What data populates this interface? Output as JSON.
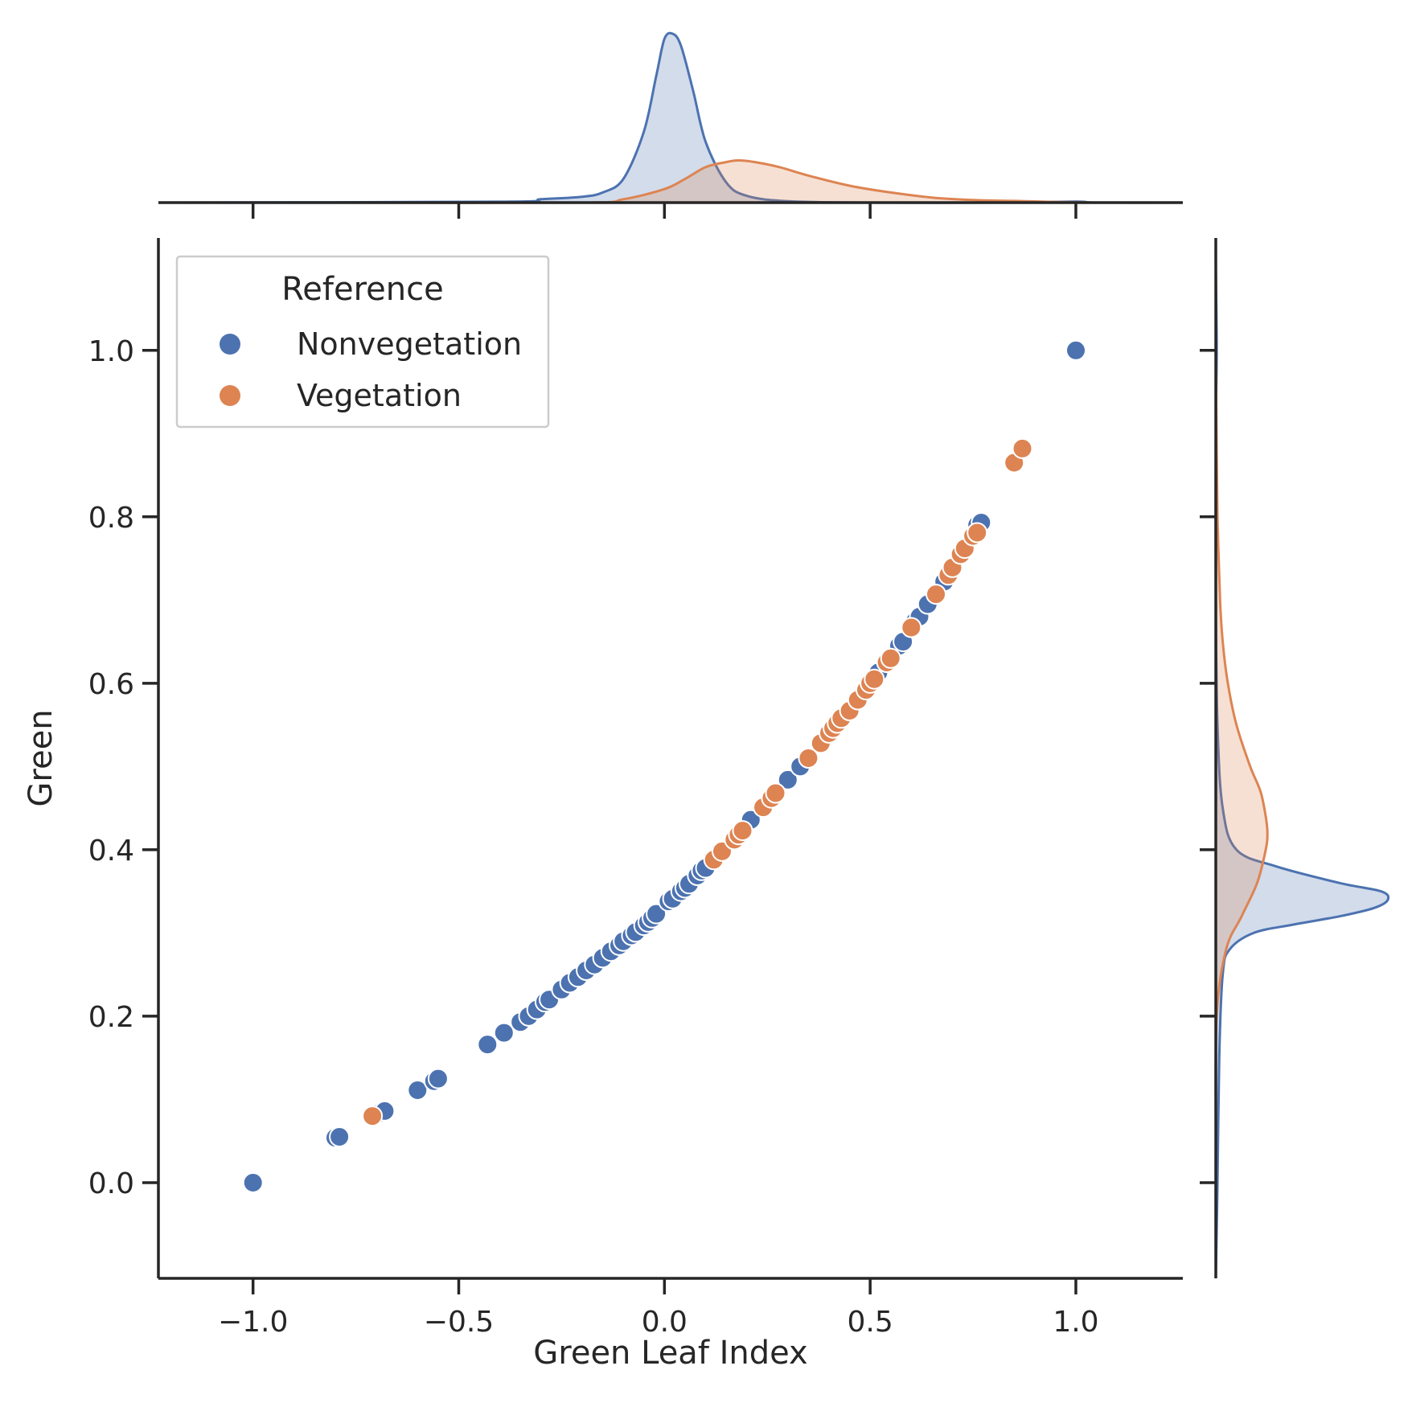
{
  "chart_data": {
    "type": "scatter",
    "xlabel": "Green Leaf Index",
    "ylabel": "Green",
    "xlim": [
      -1.23,
      1.26
    ],
    "ylim": [
      -0.115,
      1.135
    ],
    "xticks": [
      -1.0,
      -0.5,
      0.0,
      0.5,
      1.0
    ],
    "xtick_labels": [
      "−1.0",
      "−0.5",
      "0.0",
      "0.5",
      "1.0"
    ],
    "yticks": [
      0.0,
      0.2,
      0.4,
      0.6,
      0.8,
      1.0
    ],
    "ytick_labels": [
      "0.0",
      "0.2",
      "0.4",
      "0.6",
      "0.8",
      "1.0"
    ],
    "grid": false,
    "legend": {
      "title": "Reference",
      "placement": "upper-left",
      "entries": [
        "Nonvegetation",
        "Vegetation"
      ]
    },
    "colors": {
      "Nonvegetation": "#4c72b0",
      "Vegetation": "#dd8452",
      "axis": "#262626"
    },
    "series": [
      {
        "name": "Nonvegetation",
        "points": [
          [
            -1.0,
            0.0
          ],
          [
            -0.8,
            0.054
          ],
          [
            -0.79,
            0.055
          ],
          [
            -0.69,
            0.084
          ],
          [
            -0.68,
            0.086
          ],
          [
            -0.6,
            0.111
          ],
          [
            -0.56,
            0.122
          ],
          [
            -0.55,
            0.125
          ],
          [
            -0.43,
            0.166
          ],
          [
            -0.39,
            0.18
          ],
          [
            -0.35,
            0.193
          ],
          [
            -0.33,
            0.2
          ],
          [
            -0.31,
            0.208
          ],
          [
            -0.29,
            0.217
          ],
          [
            -0.28,
            0.22
          ],
          [
            -0.25,
            0.232
          ],
          [
            -0.23,
            0.24
          ],
          [
            -0.21,
            0.247
          ],
          [
            -0.19,
            0.255
          ],
          [
            -0.17,
            0.262
          ],
          [
            -0.15,
            0.27
          ],
          [
            -0.13,
            0.278
          ],
          [
            -0.11,
            0.285
          ],
          [
            -0.1,
            0.29
          ],
          [
            -0.08,
            0.297
          ],
          [
            -0.07,
            0.301
          ],
          [
            -0.05,
            0.309
          ],
          [
            -0.04,
            0.313
          ],
          [
            -0.03,
            0.318
          ],
          [
            -0.02,
            0.323
          ],
          [
            0.01,
            0.338
          ],
          [
            0.02,
            0.341
          ],
          [
            0.04,
            0.35
          ],
          [
            0.05,
            0.354
          ],
          [
            0.06,
            0.359
          ],
          [
            0.08,
            0.369
          ],
          [
            0.09,
            0.375
          ],
          [
            0.1,
            0.378
          ],
          [
            0.21,
            0.436
          ],
          [
            0.3,
            0.484
          ],
          [
            0.33,
            0.5
          ],
          [
            0.52,
            0.613
          ],
          [
            0.57,
            0.645
          ],
          [
            0.58,
            0.65
          ],
          [
            0.61,
            0.675
          ],
          [
            0.62,
            0.68
          ],
          [
            0.64,
            0.695
          ],
          [
            0.68,
            0.722
          ],
          [
            0.76,
            0.79
          ],
          [
            0.77,
            0.793
          ],
          [
            1.0,
            1.0
          ]
        ]
      },
      {
        "name": "Vegetation",
        "points": [
          [
            -0.71,
            0.08
          ],
          [
            0.12,
            0.388
          ],
          [
            0.14,
            0.398
          ],
          [
            0.17,
            0.412
          ],
          [
            0.18,
            0.418
          ],
          [
            0.19,
            0.423
          ],
          [
            0.24,
            0.451
          ],
          [
            0.26,
            0.462
          ],
          [
            0.27,
            0.468
          ],
          [
            0.35,
            0.51
          ],
          [
            0.38,
            0.528
          ],
          [
            0.4,
            0.54
          ],
          [
            0.41,
            0.546
          ],
          [
            0.42,
            0.552
          ],
          [
            0.43,
            0.558
          ],
          [
            0.45,
            0.567
          ],
          [
            0.47,
            0.58
          ],
          [
            0.49,
            0.592
          ],
          [
            0.5,
            0.6
          ],
          [
            0.51,
            0.605
          ],
          [
            0.54,
            0.625
          ],
          [
            0.55,
            0.63
          ],
          [
            0.6,
            0.667
          ],
          [
            0.66,
            0.707
          ],
          [
            0.69,
            0.73
          ],
          [
            0.7,
            0.739
          ],
          [
            0.72,
            0.755
          ],
          [
            0.73,
            0.762
          ],
          [
            0.75,
            0.777
          ],
          [
            0.76,
            0.781
          ],
          [
            0.85,
            0.865
          ],
          [
            0.87,
            0.882
          ]
        ]
      }
    ],
    "marginal_x_density": [
      {
        "name": "Nonvegetation",
        "x": [
          -1.25,
          -0.4,
          -0.3,
          -0.2,
          -0.15,
          -0.1,
          -0.05,
          -0.02,
          0.0,
          0.02,
          0.04,
          0.07,
          0.1,
          0.15,
          0.2,
          0.3,
          0.5,
          0.8,
          1.0,
          1.05,
          1.25
        ],
        "density": [
          0.0,
          0.005,
          0.02,
          0.035,
          0.06,
          0.14,
          0.42,
          0.75,
          0.97,
          1.0,
          0.93,
          0.66,
          0.36,
          0.12,
          0.04,
          0.008,
          0.0,
          0.0,
          0.006,
          0.0,
          0.0
        ]
      },
      {
        "name": "Vegetation",
        "x": [
          -0.8,
          -0.2,
          -0.1,
          0.0,
          0.05,
          0.1,
          0.15,
          0.18,
          0.22,
          0.28,
          0.35,
          0.45,
          0.55,
          0.65,
          0.75,
          0.85,
          0.95,
          1.05
        ],
        "density": [
          0.0,
          0.0,
          0.02,
          0.08,
          0.14,
          0.21,
          0.24,
          0.25,
          0.24,
          0.21,
          0.16,
          0.1,
          0.06,
          0.03,
          0.015,
          0.01,
          0.004,
          0.0
        ]
      }
    ],
    "marginal_y_density": [
      {
        "name": "Nonvegetation",
        "y": [
          -0.12,
          0.0,
          0.15,
          0.25,
          0.28,
          0.3,
          0.31,
          0.32,
          0.33,
          0.34,
          0.35,
          0.36,
          0.38,
          0.4,
          0.45,
          0.55,
          0.7,
          0.9,
          1.0,
          1.1,
          1.13
        ],
        "density": [
          0.0,
          0.01,
          0.02,
          0.04,
          0.08,
          0.22,
          0.45,
          0.72,
          0.92,
          1.0,
          0.96,
          0.72,
          0.35,
          0.12,
          0.04,
          0.01,
          0.0,
          0.0,
          0.005,
          0.0,
          0.0
        ]
      },
      {
        "name": "Vegetation",
        "y": [
          -0.12,
          0.05,
          0.2,
          0.28,
          0.32,
          0.36,
          0.4,
          0.42,
          0.44,
          0.47,
          0.5,
          0.55,
          0.6,
          0.65,
          0.7,
          0.8,
          0.9,
          1.0
        ],
        "density": [
          0.0,
          0.0,
          0.005,
          0.06,
          0.15,
          0.24,
          0.29,
          0.3,
          0.29,
          0.26,
          0.2,
          0.12,
          0.07,
          0.04,
          0.025,
          0.01,
          0.004,
          0.0
        ]
      }
    ]
  }
}
